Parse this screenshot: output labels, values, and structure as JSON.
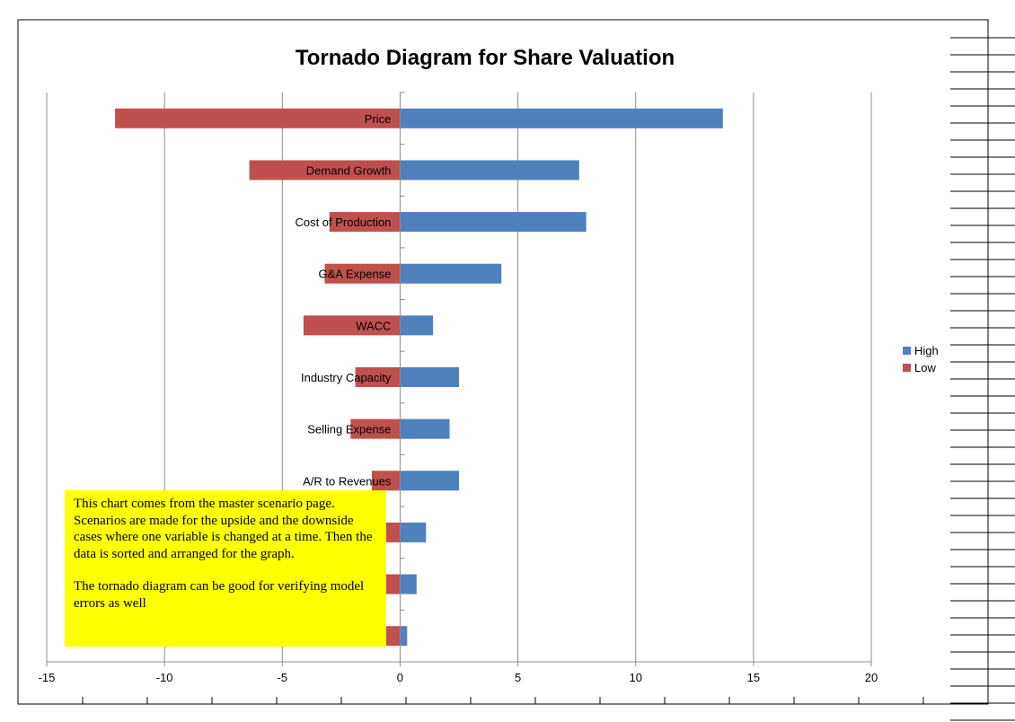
{
  "chart_data": {
    "type": "bar",
    "orientation": "horizontal",
    "title": "Tornado Diagram for Share Valuation",
    "categories": [
      "Price",
      "Demand Growth",
      "Cost of Production",
      "G&A Expense",
      "WACC",
      "Industry Capacity",
      "Selling Expense",
      "A/R to Revenues",
      "",
      "",
      ""
    ],
    "series": [
      {
        "name": "High",
        "color": "#4f81bd",
        "values": [
          13.7,
          7.6,
          7.9,
          4.3,
          1.4,
          2.5,
          2.1,
          2.5,
          1.1,
          0.7,
          0.3
        ]
      },
      {
        "name": "Low",
        "color": "#c0504d",
        "values": [
          -12.1,
          -6.4,
          -3.0,
          -3.2,
          -4.1,
          -1.9,
          -2.1,
          -1.2,
          -0.6,
          -0.6,
          -0.6
        ]
      }
    ],
    "xlim": [
      -15,
      20
    ],
    "xticks": [
      -15,
      -10,
      -5,
      0,
      5,
      10,
      15,
      20
    ],
    "xlabel": "",
    "ylabel": "",
    "grid": "vertical",
    "legend": "right"
  },
  "note": {
    "paragraph1": "This chart comes from the master scenario page. Scenarios are made for the upside and the downside cases  where one variable is changed at a time.  Then the data is sorted and arranged for the graph.",
    "paragraph2": "The tornado diagram can be good for verifying model errors as well"
  }
}
